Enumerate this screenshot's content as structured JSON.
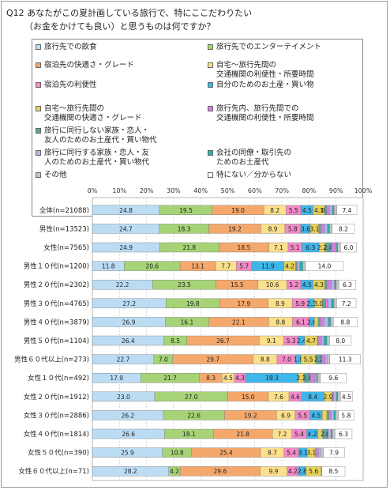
{
  "question": {
    "line1": "Q12  あなたがこの夏計画している旅行で、特にここだわりたい",
    "line2": "（お金をかけても良い）と思うものは何ですか？"
  },
  "colors": [
    "#bcdcf4",
    "#a6d376",
    "#f5a86c",
    "#fde08c",
    "#f28ac7",
    "#3fb6ea",
    "#e8d25a",
    "#5fa39c",
    "#d080e0",
    "#bcb2e8",
    "#20b2b0",
    "#c4c4c4",
    "#ffffff"
  ],
  "chart_data": {
    "type": "bar",
    "orientation": "horizontal",
    "stacked": true,
    "percent": true,
    "xlim": [
      0,
      100
    ],
    "x_ticks": [
      "0%",
      "10%",
      "20%",
      "30%",
      "40%",
      "50%",
      "60%",
      "70%",
      "80%",
      "90%",
      "100%"
    ],
    "categories": [
      "全体(n=21088)",
      "男性(n=13523)",
      "女性(n=7565)",
      "男性１０代(n=1200)",
      "男性２０代(n=2302)",
      "男性３０代(n=4765)",
      "男性４０代(n=3879)",
      "男性５０代(n=1104)",
      "男性６０代以上(n=273)",
      "女性１０代(n=492)",
      "女性２０代(n=1912)",
      "女性３０代(n=2886)",
      "女性４０代(n=1814)",
      "女性５０代(n=390)",
      "女性６０代以上(n=71)"
    ],
    "series": [
      {
        "name": "旅行先での飲食",
        "values": [
          24.8,
          24.7,
          24.9,
          11.8,
          22.2,
          27.2,
          26.9,
          26.4,
          22.7,
          17.9,
          23.0,
          26.2,
          26.6,
          25.9,
          28.2
        ]
      },
      {
        "name": "旅行先でのエンターテイメント",
        "values": [
          19.5,
          18.3,
          21.8,
          20.6,
          23.5,
          19.8,
          16.1,
          8.5,
          7.0,
          21.7,
          27.0,
          22.6,
          18.1,
          10.8,
          4.2
        ]
      },
      {
        "name": "宿泊先の快適さ・グレード",
        "values": [
          19.0,
          19.2,
          18.5,
          13.1,
          15.5,
          17.9,
          22.1,
          26.7,
          29.7,
          8.3,
          15.0,
          19.2,
          21.8,
          25.4,
          29.6
        ]
      },
      {
        "name": "自宅～旅行先間の交通機関の利便性・所要時間",
        "values": [
          8.2,
          8.9,
          7.1,
          7.7,
          10.6,
          8.9,
          8.8,
          9.1,
          8.8,
          4.5,
          7.6,
          6.9,
          7.2,
          8.7,
          9.9
        ]
      },
      {
        "name": "宿泊先の利便性",
        "values": [
          5.5,
          5.8,
          5.1,
          5.7,
          5.2,
          5.9,
          6.1,
          5.3,
          7.0,
          4.3,
          4.6,
          5.5,
          5.4,
          5.4,
          4.2
        ]
      },
      {
        "name": "自分のためのお土産・買い物",
        "values": [
          4.5,
          3.6,
          6.3,
          11.9,
          4.5,
          2.3,
          2.0,
          2.4,
          1.8,
          19.3,
          8.4,
          4.5,
          4.2,
          3.1,
          2.8
        ]
      },
      {
        "name": "自宅～旅行先間の交通機関の快適さ・グレード",
        "values": [
          4.3,
          3.1,
          2.2,
          4.2,
          4.3,
          3.0,
          1.3,
          4.7,
          5.5,
          2.1,
          2.9,
          1.7,
          1.7,
          3.1,
          5.6
        ]
      },
      {
        "name": "旅行に同行しない家族・恋人・友人のためのお土産代・買い物代",
        "values": [
          0.8,
          0.8,
          2.4,
          0.4,
          0.8,
          1.1,
          0.8,
          0.3,
          2.2,
          2.4,
          0.2,
          0.8,
          2.0,
          0.1,
          0.0
        ]
      },
      {
        "name": "旅行先内、旅行先間での交通機関の利便性・所要時間",
        "values": [
          1.0,
          1.3,
          1.4,
          0.4,
          1.6,
          1.0,
          1.4,
          1.2,
          1.3,
          1.7,
          0.4,
          0.8,
          0.1,
          1.0,
          0.3
        ]
      },
      {
        "name": "旅行に同行する家族・恋人・友人のためのお土産代・買い物代",
        "values": [
          1.0,
          1.1,
          0.4,
          0.8,
          1.2,
          1.2,
          1.6,
          0.9,
          0.7,
          0.6,
          1.0,
          1.0,
          1.0,
          0.8,
          0.0
        ]
      },
      {
        "name": "会社の同僚・取引先のためのお土産代",
        "values": [
          0.7,
          0.8,
          0.5,
          1.1,
          0.6,
          0.9,
          0.9,
          1.1,
          0.0,
          0.4,
          0.5,
          0.6,
          0.5,
          0.0,
          0.0
        ]
      },
      {
        "name": "その他",
        "values": [
          1.0,
          1.0,
          1.0,
          1.0,
          1.0,
          1.0,
          1.0,
          1.0,
          1.0,
          1.0,
          1.0,
          1.0,
          1.0,
          1.0,
          0.0
        ]
      },
      {
        "name": "特にない／分からない",
        "values": [
          7.4,
          8.2,
          6.0,
          14.0,
          6.3,
          7.2,
          8.8,
          8.0,
          11.3,
          9.6,
          4.5,
          5.8,
          6.3,
          7.9,
          8.5
        ]
      }
    ],
    "labels": [
      [
        "24.8",
        "19.5",
        "19.0",
        "8.2",
        "5.5",
        "4.5",
        "4.3",
        "0.8",
        "",
        "",
        "",
        "",
        "7.4"
      ],
      [
        "24.7",
        "18.3",
        "19.2",
        "8.9",
        "5.8",
        "3.6",
        "3.1",
        "",
        "",
        "",
        "",
        "",
        "8.2"
      ],
      [
        "24.9",
        "21.8",
        "18.5",
        "7.1",
        "5.1",
        "6.3",
        "2.2",
        "2.4",
        "",
        "",
        "",
        "",
        "6.0"
      ],
      [
        "11.8",
        "20.6",
        "13.1",
        "7.7",
        "5.7",
        "11.9",
        "4.2",
        "",
        "",
        "",
        "",
        "",
        "14.0"
      ],
      [
        "22.2",
        "23.5",
        "15.5",
        "10.6",
        "5.2",
        "4.5",
        "4.3",
        "",
        "",
        "",
        "",
        "",
        "6.3"
      ],
      [
        "27.2",
        "19.8",
        "17.9",
        "8.9",
        "5.9",
        "2.3",
        "3.0",
        "",
        "",
        "",
        "",
        "",
        "7.2"
      ],
      [
        "26.9",
        "16.1",
        "22.1",
        "8.8",
        "6.1",
        "2.0",
        "",
        "",
        "",
        "",
        "",
        "",
        "8.8"
      ],
      [
        "26.4",
        "8.5",
        "26.7",
        "9.1",
        "5.3",
        "2.4",
        "4.7",
        "",
        "",
        "",
        "",
        "",
        "8.0"
      ],
      [
        "22.7",
        "7.0",
        "29.7",
        "8.8",
        "7.0",
        "1.8",
        "5.5",
        "2.2",
        "",
        "",
        "",
        "",
        "11.3"
      ],
      [
        "17.9",
        "21.7",
        "8.3",
        "4.5",
        "4.3",
        "19.3",
        "2.1",
        "2.4",
        "",
        "",
        "",
        "",
        "9.6"
      ],
      [
        "23.0",
        "27.0",
        "15.0",
        "7.6",
        "4.6",
        "8.4",
        "2.9",
        "",
        "",
        "",
        "",
        "",
        "4.5"
      ],
      [
        "26.2",
        "22.6",
        "19.2",
        "6.9",
        "5.5",
        "4.5",
        "",
        "",
        "",
        "",
        "",
        "",
        "5.8"
      ],
      [
        "26.6",
        "18.1",
        "21.8",
        "7.2",
        "5.4",
        "4.2",
        "",
        "2.0",
        "",
        "",
        "",
        "",
        "6.3"
      ],
      [
        "25.9",
        "10.8",
        "25.4",
        "8.7",
        "5.4",
        "3.1",
        "3.1",
        "",
        "",
        "",
        "",
        "",
        "7.9"
      ],
      [
        "28.2",
        "4.2",
        "29.6",
        "9.9",
        "4.2",
        "2.8",
        "5.6",
        "",
        "",
        "",
        "",
        "",
        "8.5"
      ]
    ]
  }
}
